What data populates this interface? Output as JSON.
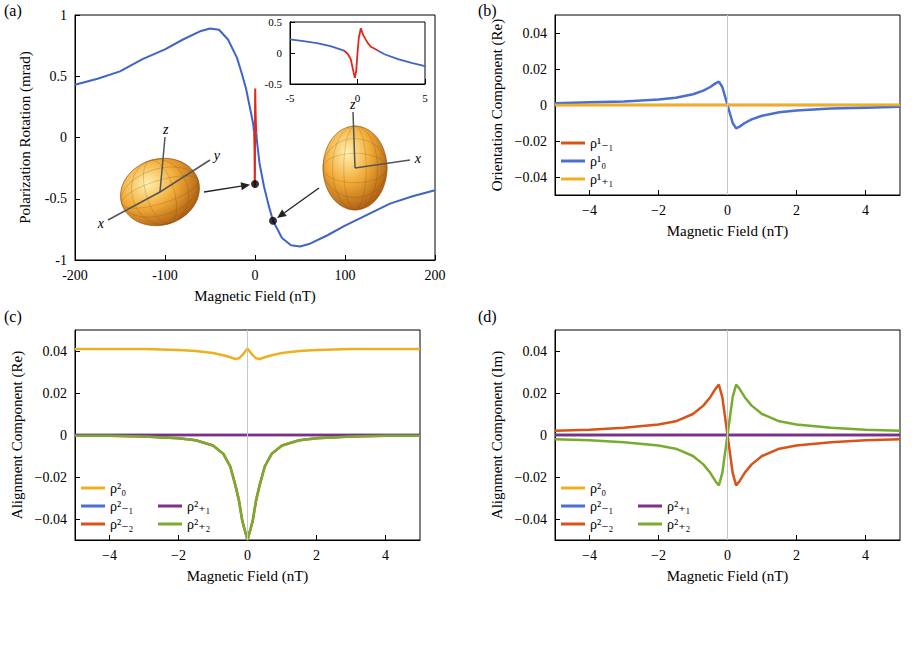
{
  "chart_data": [
    {
      "panel": "(a)",
      "type": "line",
      "x_label": "Magnetic Field (nT)",
      "y_label": "Polarization Rotation (mrad)",
      "xlim": [
        -200,
        200
      ],
      "xticks": [
        -200,
        -100,
        0,
        100,
        200
      ],
      "ylim": [
        -1,
        1
      ],
      "yticks": [
        -1,
        -0.5,
        0,
        0.5,
        1
      ],
      "series": [
        {
          "color": "#4063c8",
          "x": [
            -200,
            -175,
            -150,
            -125,
            -100,
            -80,
            -60,
            -50,
            -40,
            -30,
            -20,
            -15,
            -10,
            -5,
            -2,
            -1,
            0,
            1.5,
            2,
            5,
            10,
            15,
            20,
            30,
            40,
            50,
            60,
            80,
            100,
            125,
            150,
            175,
            200
          ],
          "values": [
            0.43,
            0.48,
            0.54,
            0.64,
            0.72,
            0.8,
            0.87,
            0.89,
            0.88,
            0.8,
            0.65,
            0.53,
            0.4,
            0.22,
            0.11,
            0.04,
            null,
            0.04,
            -0.02,
            -0.21,
            -0.4,
            -0.55,
            -0.68,
            -0.82,
            -0.88,
            -0.89,
            -0.87,
            -0.8,
            -0.72,
            -0.63,
            -0.54,
            -0.48,
            -0.43
          ]
        },
        {
          "color": "#e0281e",
          "x": [
            -1,
            -0.7,
            -0.5,
            -0.3,
            -0.2,
            -0.1,
            0,
            0.1,
            0.25,
            0.4,
            0.6,
            0.8,
            1,
            1.5
          ],
          "values": [
            0.04,
            -0.02,
            -0.1,
            -0.3,
            -0.4,
            -0.3,
            0,
            0.25,
            0.4,
            0.3,
            0.22,
            0.15,
            0.1,
            0.04
          ]
        }
      ],
      "markers": {
        "color": "#000000",
        "x": [
          0,
          20
        ],
        "values": [
          -0.38,
          -0.68
        ]
      },
      "inset": {
        "type": "line",
        "xlim": [
          -5,
          5
        ],
        "xticks": [
          -5,
          0,
          5
        ],
        "ylim": [
          -0.5,
          0.5
        ],
        "yticks": [
          -0.5,
          0,
          0.5
        ],
        "series": [
          {
            "color": "#4063c8",
            "x": [
              -5,
              -4,
              -3,
              -2,
              -1
            ],
            "values": [
              0.22,
              0.19,
              0.16,
              0.11,
              0.04
            ]
          },
          {
            "color": "#e0281e",
            "x": [
              -1,
              -0.7,
              -0.5,
              -0.3,
              -0.2,
              -0.1,
              0,
              0.1,
              0.25,
              0.4,
              0.6,
              0.8,
              1,
              1.5
            ],
            "values": [
              0.04,
              -0.02,
              -0.1,
              -0.3,
              -0.4,
              -0.3,
              0,
              0.25,
              0.4,
              0.3,
              0.22,
              0.15,
              0.1,
              0.04
            ]
          },
          {
            "color": "#4063c8",
            "x": [
              1.5,
              2,
              3,
              4,
              5
            ],
            "values": [
              0.04,
              -0.02,
              -0.1,
              -0.16,
              -0.21
            ]
          }
        ]
      },
      "insets_3d": [
        {
          "axes": [
            "x",
            "y",
            "z"
          ]
        },
        {
          "axes": [
            "x",
            "z"
          ]
        }
      ]
    },
    {
      "panel": "(b)",
      "type": "line",
      "x_label": "Magnetic Field (nT)",
      "y_label": "Orientation Component (Re)",
      "xlim": [
        -5,
        5
      ],
      "xticks": [
        {
          "value": -4,
          "label": "−4"
        },
        {
          "value": -2,
          "label": "−2"
        },
        0,
        2,
        4
      ],
      "ylim": [
        -0.05,
        0.05
      ],
      "yticks": [
        {
          "value": -0.04,
          "label": "−0.04"
        },
        {
          "value": -0.02,
          "label": "−0.02"
        },
        0,
        0.02,
        0.04
      ],
      "legend": "lower left",
      "vlines": [
        0
      ],
      "x": [
        -5,
        -4,
        -3,
        -2,
        -1.5,
        -1,
        -0.7,
        -0.5,
        -0.35,
        -0.25,
        -0.15,
        0,
        0.15,
        0.25,
        0.35,
        0.5,
        0.7,
        1,
        1.5,
        2,
        3,
        4,
        5
      ],
      "series": [
        {
          "name": "ρ¹₋₁",
          "color": "#d95319",
          "values": [
            0,
            0,
            0,
            0,
            0,
            0,
            0,
            0,
            0,
            0,
            0,
            0,
            0,
            0,
            0,
            0,
            0,
            0,
            0,
            0,
            0,
            0,
            0
          ]
        },
        {
          "name": "ρ¹₀",
          "color": "#4a6fd0",
          "values": [
            0.001,
            0.0015,
            0.002,
            0.003,
            0.004,
            0.006,
            0.008,
            0.01,
            0.012,
            0.013,
            0.01,
            0,
            -0.01,
            -0.013,
            -0.012,
            -0.01,
            -0.008,
            -0.006,
            -0.004,
            -0.003,
            -0.002,
            -0.0015,
            -0.001
          ]
        },
        {
          "name": "ρ¹₊₁",
          "color": "#edb120",
          "values": [
            0,
            0,
            0,
            0,
            0,
            0,
            0,
            0,
            0,
            0,
            0,
            0,
            0,
            0,
            0,
            0,
            0,
            0,
            0,
            0,
            0,
            0,
            0
          ]
        }
      ]
    },
    {
      "panel": "(c)",
      "type": "line",
      "x_label": "Magnetic Field (nT)",
      "y_label": "Alignment Component (Re)",
      "xlim": [
        -5,
        5
      ],
      "xticks": [
        {
          "value": -4,
          "label": "−4"
        },
        {
          "value": -2,
          "label": "−2"
        },
        0,
        2,
        4
      ],
      "ylim": [
        -0.05,
        0.05
      ],
      "yticks": [
        {
          "value": -0.04,
          "label": "−0.04"
        },
        {
          "value": -0.02,
          "label": "−0.02"
        },
        0,
        0.02,
        0.04
      ],
      "legend": "lower left",
      "vlines": [
        0
      ],
      "x": [
        -5,
        -4,
        -3,
        -2,
        -1.5,
        -1,
        -0.7,
        -0.5,
        -0.35,
        -0.25,
        -0.15,
        0,
        0.15,
        0.25,
        0.35,
        0.5,
        0.7,
        1,
        1.5,
        2,
        3,
        4,
        5
      ],
      "series": [
        {
          "name": "ρ²₀",
          "color": "#edb120",
          "values": [
            0.041,
            0.041,
            0.041,
            0.0405,
            0.04,
            0.039,
            0.038,
            0.037,
            0.0362,
            0.0365,
            0.038,
            0.0412,
            0.038,
            0.0365,
            0.0362,
            0.037,
            0.038,
            0.039,
            0.04,
            0.0405,
            0.041,
            0.041,
            0.041
          ]
        },
        {
          "name": "ρ²₋₁",
          "color": "#4a6fd0",
          "values": [
            0,
            0,
            0,
            0,
            0,
            0,
            0,
            0,
            0,
            0,
            0,
            0,
            0,
            0,
            0,
            0,
            0,
            0,
            0,
            0,
            0,
            0,
            0
          ]
        },
        {
          "name": "ρ²₋₂",
          "color": "#d95319",
          "values": [
            -0.0003,
            -0.0004,
            -0.0007,
            -0.0015,
            -0.0025,
            -0.005,
            -0.009,
            -0.015,
            -0.024,
            -0.031,
            -0.041,
            -0.05,
            -0.041,
            -0.031,
            -0.024,
            -0.015,
            -0.009,
            -0.005,
            -0.0025,
            -0.0015,
            -0.0007,
            -0.0004,
            -0.0003
          ]
        },
        {
          "name": "ρ²₊₁",
          "color": "#7e2f8e",
          "values": [
            0,
            0,
            0,
            0,
            0,
            0,
            0,
            0,
            0,
            0,
            0,
            0,
            0,
            0,
            0,
            0,
            0,
            0,
            0,
            0,
            0,
            0,
            0
          ]
        },
        {
          "name": "ρ²₊₂",
          "color": "#77ac30",
          "values": [
            -0.0003,
            -0.0004,
            -0.0007,
            -0.0015,
            -0.0025,
            -0.005,
            -0.009,
            -0.015,
            -0.024,
            -0.031,
            -0.041,
            -0.05,
            -0.041,
            -0.031,
            -0.024,
            -0.015,
            -0.009,
            -0.005,
            -0.0025,
            -0.0015,
            -0.0007,
            -0.0004,
            -0.0003
          ]
        }
      ]
    },
    {
      "panel": "(d)",
      "type": "line",
      "x_label": "Magnetic Field (nT)",
      "y_label": "Alignment Component (Im)",
      "xlim": [
        -5,
        5
      ],
      "xticks": [
        {
          "value": -4,
          "label": "−4"
        },
        {
          "value": -2,
          "label": "−2"
        },
        0,
        2,
        4
      ],
      "ylim": [
        -0.05,
        0.05
      ],
      "yticks": [
        {
          "value": -0.04,
          "label": "−0.04"
        },
        {
          "value": -0.02,
          "label": "−0.02"
        },
        0,
        0.02,
        0.04
      ],
      "legend": "lower left",
      "vlines": [
        0
      ],
      "x": [
        -5,
        -4,
        -3,
        -2,
        -1.5,
        -1,
        -0.7,
        -0.5,
        -0.35,
        -0.25,
        -0.15,
        0,
        0.15,
        0.25,
        0.35,
        0.5,
        0.7,
        1,
        1.5,
        2,
        3,
        4,
        5
      ],
      "series": [
        {
          "name": "ρ²₀",
          "color": "#edb120",
          "values": [
            0,
            0,
            0,
            0,
            0,
            0,
            0,
            0,
            0,
            0,
            0,
            0,
            0,
            0,
            0,
            0,
            0,
            0,
            0,
            0,
            0,
            0,
            0
          ]
        },
        {
          "name": "ρ²₋₁",
          "color": "#4a6fd0",
          "values": [
            0,
            0,
            0,
            0,
            0,
            0,
            0,
            0,
            0,
            0,
            0,
            0,
            0,
            0,
            0,
            0,
            0,
            0,
            0,
            0,
            0,
            0,
            0
          ]
        },
        {
          "name": "ρ²₋₂",
          "color": "#d95319",
          "values": [
            0.002,
            0.0025,
            0.0035,
            0.005,
            0.0065,
            0.01,
            0.014,
            0.018,
            0.022,
            0.024,
            0.018,
            0,
            -0.018,
            -0.024,
            -0.022,
            -0.018,
            -0.014,
            -0.01,
            -0.0065,
            -0.005,
            -0.0035,
            -0.0025,
            -0.002
          ]
        },
        {
          "name": "ρ²₊₁",
          "color": "#7e2f8e",
          "values": [
            0,
            0,
            0,
            0,
            0,
            0,
            0,
            0,
            0,
            0,
            0,
            0,
            0,
            0,
            0,
            0,
            0,
            0,
            0,
            0,
            0,
            0,
            0
          ]
        },
        {
          "name": "ρ²₊₂",
          "color": "#77ac30",
          "values": [
            -0.002,
            -0.0025,
            -0.0035,
            -0.005,
            -0.0065,
            -0.01,
            -0.014,
            -0.018,
            -0.022,
            -0.024,
            -0.018,
            0,
            0.018,
            0.024,
            0.022,
            0.018,
            0.014,
            0.01,
            0.0065,
            0.005,
            0.0035,
            0.0025,
            0.002
          ]
        }
      ]
    }
  ]
}
